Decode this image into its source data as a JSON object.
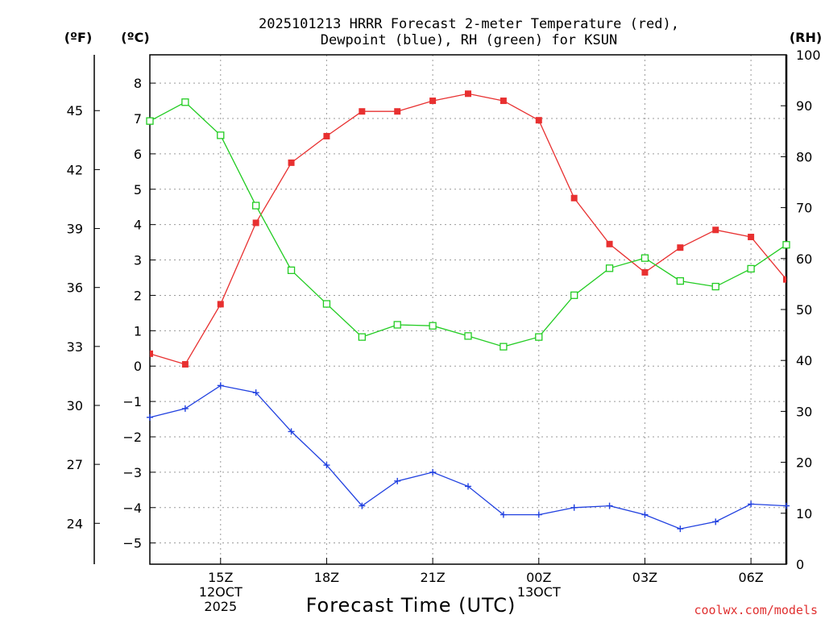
{
  "chart_data": {
    "type": "line",
    "title_line1": "2025101213 HRRR Forecast 2-meter Temperature (red),",
    "title_line2": "Dewpoint (blue), RH (green) for KSUN",
    "xlabel": "Forecast Time (UTC)",
    "unit_left_outer": "(ºF)",
    "unit_left_inner": "(ºC)",
    "unit_right": "(RH)",
    "credit": "coolwx.com/models",
    "credit_color": "#e03030",
    "x_hours": [
      13,
      14,
      15,
      16,
      17,
      18,
      19,
      20,
      21,
      22,
      23,
      24,
      25,
      26,
      27,
      28,
      29,
      30,
      31
    ],
    "xlim": [
      13,
      31
    ],
    "x_ticks": [
      {
        "hour": 15,
        "lines": [
          "15Z",
          "12OCT",
          "2025"
        ]
      },
      {
        "hour": 18,
        "lines": [
          "18Z"
        ]
      },
      {
        "hour": 21,
        "lines": [
          "21Z"
        ]
      },
      {
        "hour": 24,
        "lines": [
          "00Z",
          "13OCT"
        ]
      },
      {
        "hour": 27,
        "lines": [
          "03Z"
        ]
      },
      {
        "hour": 30,
        "lines": [
          "06Z"
        ]
      }
    ],
    "celsius_axis": {
      "ylim": [
        -5.6,
        8.8
      ],
      "ticks": [
        -5,
        -4,
        -3,
        -2,
        -1,
        0,
        1,
        2,
        3,
        4,
        5,
        6,
        7,
        8
      ]
    },
    "fahrenheit_ticks": [
      24,
      27,
      30,
      33,
      36,
      39,
      42,
      45
    ],
    "rh_axis": {
      "ylim": [
        0,
        100
      ],
      "ticks": [
        0,
        10,
        20,
        30,
        40,
        50,
        60,
        70,
        80,
        90,
        100
      ]
    },
    "series": [
      {
        "name": "Temperature",
        "unit": "C",
        "color": "#e83030",
        "marker": "filled-square",
        "values": [
          0.35,
          0.05,
          1.75,
          4.05,
          5.75,
          6.5,
          7.2,
          7.2,
          7.5,
          7.7,
          7.5,
          6.95,
          4.75,
          3.45,
          2.65,
          3.35,
          3.85,
          3.65,
          2.45
        ]
      },
      {
        "name": "Dewpoint",
        "unit": "C",
        "color": "#2040e0",
        "marker": "plus",
        "values": [
          -1.45,
          -1.2,
          -0.55,
          -0.75,
          -1.85,
          -2.8,
          -3.95,
          -3.25,
          -3.0,
          -3.4,
          -4.2,
          -4.2,
          -4.0,
          -3.95,
          -4.2,
          -4.6,
          -4.4,
          -3.9,
          -3.95
        ]
      },
      {
        "name": "RH",
        "unit": "%",
        "color": "#22cc22",
        "marker": "open-square",
        "values": [
          87,
          90.7,
          84.2,
          70.4,
          57.7,
          51.1,
          44.6,
          47,
          46.8,
          44.8,
          42.7,
          44.6,
          52.8,
          58.1,
          60.1,
          55.6,
          54.5,
          58,
          62.7
        ]
      }
    ]
  }
}
